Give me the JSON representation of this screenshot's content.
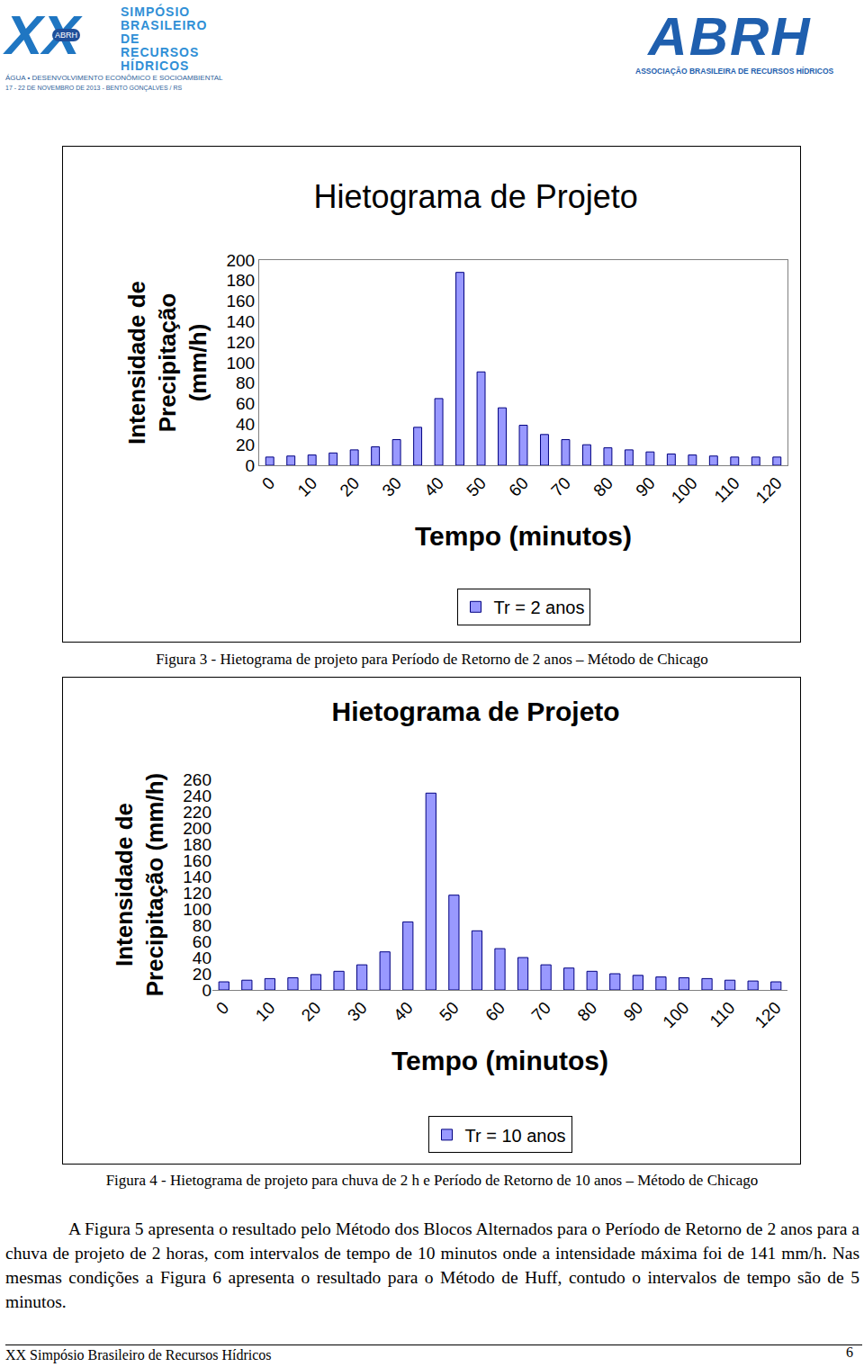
{
  "header": {
    "logo_mark": "XX",
    "logo_badge": "ABRH",
    "logo_lines": [
      "SIMPÓSIO",
      "BRASILEIRO",
      "DE RECURSOS",
      "HÍDRICOS"
    ],
    "logo_sub": "ÁGUA • DESENVOLVIMENTO ECONÔMICO E SOCIOAMBIENTAL",
    "logo_date": "17 - 22 DE NOVEMBRO DE 2013 - BENTO GONÇALVES / RS",
    "right_logo": "ABRH",
    "right_sub": "ASSOCIAÇÃO BRASILEIRA DE RECURSOS HÍDRICOS"
  },
  "chart_data": [
    {
      "type": "bar",
      "title": "Hietograma de Projeto",
      "title_bold": false,
      "xlabel": "Tempo (minutos)",
      "ylabel_lines": [
        "Intensidade de",
        "Precipitação",
        "(mm/h)"
      ],
      "categories": [
        "0",
        null,
        "10",
        null,
        "20",
        null,
        "30",
        null,
        "40",
        null,
        "50",
        null,
        "60",
        null,
        "70",
        null,
        "80",
        null,
        "90",
        null,
        "100",
        null,
        "110",
        null,
        "120"
      ],
      "series": [
        {
          "name": "Tr = 2 anos",
          "color": "#9999ff",
          "values": [
            8,
            9,
            10,
            12,
            15,
            18,
            25,
            37,
            65,
            188,
            91,
            56,
            39,
            30,
            25,
            20,
            17,
            15,
            13,
            11,
            10,
            9,
            8,
            8,
            8
          ]
        }
      ],
      "ylim": [
        0,
        200
      ],
      "yticks": [
        0,
        20,
        40,
        60,
        80,
        100,
        120,
        140,
        160,
        180,
        200
      ],
      "grid": false,
      "legend": "bottom",
      "caption": "Figura 3 - Hietograma de projeto para Período de Retorno de 2 anos – Método de Chicago"
    },
    {
      "type": "bar",
      "title": "Hietograma de Projeto",
      "title_bold": true,
      "xlabel": "Tempo (minutos)",
      "ylabel_lines": [
        "Intensidade de",
        "Precipitação (mm/h)"
      ],
      "categories": [
        "0",
        null,
        "10",
        null,
        "20",
        null,
        "30",
        null,
        "40",
        null,
        "50",
        null,
        "60",
        null,
        "70",
        null,
        "80",
        null,
        "90",
        null,
        "100",
        null,
        "110",
        null,
        "120"
      ],
      "series": [
        {
          "name": "Tr = 10 anos",
          "color": "#9999ff",
          "values": [
            10,
            12,
            14,
            15,
            19,
            23,
            31,
            47,
            84,
            243,
            117,
            73,
            51,
            40,
            31,
            27,
            23,
            20,
            18,
            16,
            15,
            14,
            12,
            11,
            10
          ]
        }
      ],
      "ylim": [
        0,
        260
      ],
      "yticks": [
        0,
        20,
        40,
        60,
        80,
        100,
        120,
        140,
        160,
        180,
        200,
        220,
        240,
        260
      ],
      "grid": false,
      "legend": "bottom",
      "caption": "Figura 4 - Hietograma de projeto para chuva de 2 h e Período de Retorno de 10 anos – Método de Chicago"
    }
  ],
  "paragraph": "A Figura 5 apresenta o resultado pelo Método dos Blocos Alternados para o Período de Retorno de 2 anos para a chuva de projeto de 2 horas, com intervalos de tempo de 10 minutos onde a intensidade máxima foi de 141 mm/h. Nas mesmas condições a Figura 6 apresenta o resultado para o Método de Huff, contudo o intervalos de tempo são de 5 minutos.",
  "footer": {
    "left": "XX Simpósio Brasileiro de Recursos Hídricos",
    "page": "6"
  }
}
